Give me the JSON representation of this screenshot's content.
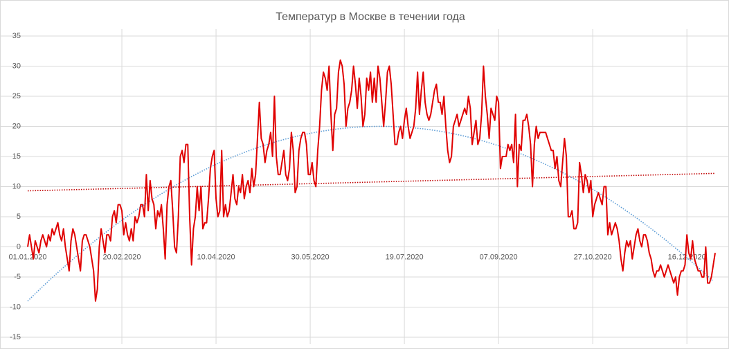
{
  "chart_data": {
    "type": "line",
    "title": "Температур в Москве в течении года",
    "categories": [
      "01.01.2020",
      null,
      null,
      null,
      null,
      null,
      null,
      null,
      null,
      null,
      null,
      null,
      null,
      null,
      null,
      null,
      null,
      null,
      null,
      null,
      null,
      null,
      null,
      null,
      null,
      null,
      null,
      null,
      null,
      null,
      null,
      null,
      null,
      null,
      null,
      null,
      null,
      null,
      null,
      null,
      null,
      null,
      null,
      null,
      null,
      null,
      null,
      null,
      null,
      null,
      "20.02.2020",
      null,
      null,
      null,
      null,
      null,
      null,
      null,
      null,
      null,
      null,
      null,
      null,
      null,
      null,
      null,
      null,
      null,
      null,
      null,
      null,
      null,
      null,
      null,
      null,
      null,
      null,
      null,
      null,
      null,
      null,
      null,
      null,
      null,
      null,
      null,
      null,
      null,
      null,
      null,
      null,
      null,
      null,
      null,
      null,
      null,
      null,
      null,
      null,
      null,
      "10.04.2020",
      null,
      null,
      null,
      null,
      null,
      null,
      null,
      null,
      null,
      null,
      null,
      null,
      null,
      null,
      null,
      null,
      null,
      null,
      null,
      null,
      null,
      null,
      null,
      null,
      null,
      null,
      null,
      null,
      null,
      null,
      null,
      null,
      null,
      null,
      null,
      null,
      null,
      null,
      null,
      null,
      null,
      null,
      null,
      null,
      null,
      null,
      null,
      null,
      null,
      "30.05.2020",
      null,
      null,
      null,
      null,
      null,
      null,
      null,
      null,
      null,
      null,
      null,
      null,
      null,
      null,
      null,
      null,
      null,
      null,
      null,
      null,
      null,
      null,
      null,
      null,
      null,
      null,
      null,
      null,
      null,
      null,
      null,
      null,
      null,
      null,
      null,
      null,
      null,
      null,
      null,
      null,
      null,
      null,
      null,
      null,
      null,
      null,
      null,
      null,
      null,
      "19.07.2020",
      null,
      null,
      null,
      null,
      null,
      null,
      null,
      null,
      null,
      null,
      null,
      null,
      null,
      null,
      null,
      null,
      null,
      null,
      null,
      null,
      null,
      null,
      null,
      null,
      null,
      null,
      null,
      null,
      null,
      null,
      null,
      null,
      null,
      null,
      null,
      null,
      null,
      null,
      null,
      null,
      null,
      null,
      null,
      null,
      null,
      null,
      null,
      null,
      null,
      "07.09.2020",
      null,
      null,
      null,
      null,
      null,
      null,
      null,
      null,
      null,
      null,
      null,
      null,
      null,
      null,
      null,
      null,
      null,
      null,
      null,
      null,
      null,
      null,
      null,
      null,
      null,
      null,
      null,
      null,
      null,
      null,
      null,
      null,
      null,
      null,
      null,
      null,
      null,
      null,
      null,
      null,
      null,
      null,
      null,
      null,
      null,
      null,
      null,
      null,
      null,
      "27.10.2020",
      null,
      null,
      null,
      null,
      null,
      null,
      null,
      null,
      null,
      null,
      null,
      null,
      null,
      null,
      null,
      null,
      null,
      null,
      null,
      null,
      null,
      null,
      null,
      null,
      null,
      null,
      null,
      null,
      null,
      null,
      null,
      null,
      null,
      null,
      null,
      null,
      null,
      null,
      null,
      null,
      null,
      null,
      null,
      null,
      null,
      null,
      null,
      null,
      null,
      "16.12.2020",
      null,
      null,
      null,
      null,
      null,
      null,
      null,
      null,
      null,
      null,
      null,
      null,
      null,
      null,
      null
    ],
    "series": [
      {
        "color": "#e00000",
        "values": [
          0,
          2,
          0,
          -2,
          1,
          0,
          -1,
          1,
          2,
          1,
          0,
          2,
          1,
          3,
          2,
          3,
          4,
          2,
          1,
          3,
          0,
          -2,
          -4,
          1,
          3,
          2,
          0,
          -2,
          -4,
          1,
          2,
          2,
          1,
          0,
          -2,
          -4,
          -9,
          -7,
          0,
          3,
          1,
          -1,
          2,
          2,
          1,
          5,
          6,
          4,
          7,
          7,
          6,
          2,
          4,
          2,
          1,
          3,
          1,
          5,
          4,
          5,
          7,
          7,
          5,
          12,
          6,
          11,
          8,
          7,
          3,
          6,
          5,
          7,
          3,
          -2,
          7,
          10,
          11,
          6,
          0,
          -1,
          5,
          15,
          16,
          14,
          17,
          17,
          5,
          -3,
          3,
          5,
          10,
          6,
          10,
          3,
          4,
          4,
          8,
          13,
          15,
          16,
          8,
          5,
          6,
          16,
          5,
          7,
          5,
          6,
          9,
          12,
          8,
          7,
          10,
          9,
          12,
          8,
          10,
          11,
          9,
          13,
          10,
          12,
          18,
          24,
          18,
          17,
          14,
          16,
          17,
          19,
          15,
          25,
          15,
          12,
          12,
          14,
          16,
          12,
          11,
          13,
          19,
          16,
          9,
          10,
          16,
          18,
          19,
          19,
          17,
          12,
          12,
          14,
          11,
          10,
          16,
          20,
          26,
          29,
          28,
          26,
          30,
          22,
          16,
          22,
          23,
          29,
          31,
          30,
          27,
          20,
          23,
          24,
          26,
          30,
          27,
          23,
          28,
          25,
          20,
          22,
          28,
          26,
          29,
          24,
          28,
          24,
          30,
          28,
          24,
          20,
          24,
          29,
          30,
          27,
          22,
          17,
          17,
          19,
          20,
          18,
          21,
          23,
          20,
          18,
          19,
          20,
          23,
          29,
          22,
          26,
          29,
          24,
          22,
          21,
          22,
          24,
          26,
          27,
          24,
          24,
          22,
          25,
          20,
          16,
          14,
          15,
          20,
          21,
          22,
          20,
          21,
          22,
          23,
          22,
          25,
          23,
          17,
          19,
          21,
          17,
          18,
          22,
          30,
          25,
          22,
          18,
          23,
          22,
          21,
          25,
          24,
          13,
          15,
          15,
          15,
          17,
          16,
          17,
          14,
          22,
          10,
          17,
          16,
          21,
          21,
          22,
          20,
          17,
          10,
          17,
          20,
          18,
          19,
          19,
          19,
          19,
          18,
          17,
          16,
          16,
          13,
          15,
          11,
          10,
          14,
          18,
          15,
          5,
          5,
          6,
          3,
          3,
          4,
          14,
          12,
          9,
          12,
          11,
          9,
          11,
          5,
          7,
          8,
          9,
          8,
          7,
          10,
          10,
          2,
          4,
          2,
          3,
          4,
          3,
          1,
          -2,
          -4,
          -1,
          1,
          0,
          1,
          -2,
          0,
          2,
          3,
          1,
          0,
          2,
          2,
          1,
          -1,
          -2,
          -4,
          -5,
          -4,
          -4,
          -3,
          -4,
          -5,
          -4,
          -3,
          -4,
          -5,
          -6,
          -5,
          -8,
          -5,
          -4,
          -4,
          -3,
          2,
          -1,
          -2,
          1,
          -2,
          -3,
          -4,
          -4,
          -5,
          -5,
          0,
          -6,
          -6,
          -5,
          -3,
          -1
        ]
      }
    ],
    "trendlines": [
      {
        "kind": "linear",
        "color": "#c00000",
        "values": [
          9.3,
          12.2
        ]
      },
      {
        "kind": "polynomial",
        "color": "#5b9bd5",
        "points": [
          [
            0,
            -9
          ],
          [
            185,
            20
          ],
          [
            365,
            -6
          ]
        ]
      }
    ],
    "ylim": [
      -15,
      35
    ],
    "yticks": [
      -15,
      -10,
      -5,
      0,
      5,
      10,
      15,
      20,
      25,
      30,
      35
    ],
    "grid": true
  }
}
